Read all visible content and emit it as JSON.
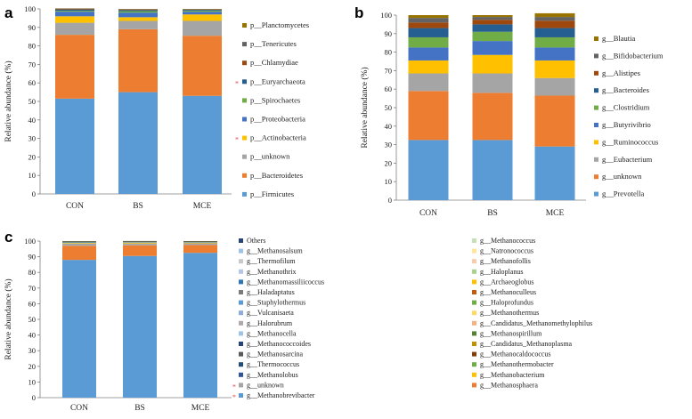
{
  "chart_data": [
    {
      "panel": "a",
      "type": "stacked-bar",
      "ylabel": "Relative abundance (%)",
      "ylim": [
        0,
        100
      ],
      "yticks": [
        "0",
        "10",
        "20",
        "30",
        "40",
        "50",
        "60",
        "70",
        "80",
        "90",
        "100"
      ],
      "categories": [
        "CON",
        "BS",
        "MCE"
      ],
      "series": [
        {
          "name": "p__Firmicutes",
          "color": "#5b9bd5",
          "values": [
            51.5,
            55,
            53
          ]
        },
        {
          "name": "p__Bacteroidetes",
          "color": "#ed7d31",
          "values": [
            34.5,
            34,
            32.5
          ]
        },
        {
          "name": "p__unknown",
          "color": "#a5a5a5",
          "values": [
            6.5,
            4.5,
            8
          ]
        },
        {
          "name": "p__Actinobacteria",
          "color": "#ffc000",
          "values": [
            3.5,
            2,
            3.5
          ]
        },
        {
          "name": "p__Proteobacteria",
          "color": "#4472c4",
          "values": [
            2.5,
            2.5,
            1.5
          ]
        },
        {
          "name": "p__Spirochaetes",
          "color": "#70ad47",
          "values": [
            0.5,
            0.8,
            0.6
          ]
        },
        {
          "name": "p__Euryarchaeota",
          "color": "#255e91",
          "values": [
            0.7,
            0.6,
            0.5
          ]
        },
        {
          "name": "p__Chlamydiae",
          "color": "#9e480e",
          "values": [
            0.3,
            0.3,
            0.2
          ]
        },
        {
          "name": "p__Tenericutes",
          "color": "#636363",
          "values": [
            0.2,
            0.2,
            0.1
          ]
        },
        {
          "name": "p__Planctomycetes",
          "color": "#997300",
          "values": [
            0.1,
            0.1,
            0.1
          ]
        }
      ],
      "starred": [
        "p__Euryarchaeota",
        "p__Actinobacteria"
      ]
    },
    {
      "panel": "b",
      "type": "stacked-bar",
      "ylabel": "Relative abundance (%)",
      "ylim": [
        0,
        100
      ],
      "yticks": [
        "0",
        "10",
        "20",
        "30",
        "40",
        "50",
        "60",
        "70",
        "80",
        "90",
        "100"
      ],
      "categories": [
        "CON",
        "BS",
        "MCE"
      ],
      "series": [
        {
          "name": "g__Prevotella",
          "color": "#5b9bd5",
          "values": [
            32.5,
            32.5,
            29
          ]
        },
        {
          "name": "g__unknown",
          "color": "#ed7d31",
          "values": [
            26.5,
            25.5,
            27.5
          ]
        },
        {
          "name": "g__Eubacterium",
          "color": "#a5a5a5",
          "values": [
            9.5,
            10.5,
            9.5
          ]
        },
        {
          "name": "g__Ruminococcus",
          "color": "#ffc000",
          "values": [
            7,
            10,
            9.5
          ]
        },
        {
          "name": "g__Butyrivibrio",
          "color": "#4472c4",
          "values": [
            7,
            7.5,
            7
          ]
        },
        {
          "name": "g__Clostridium",
          "color": "#70ad47",
          "values": [
            5.5,
            5,
            5.5
          ]
        },
        {
          "name": "g__Bacteroides",
          "color": "#255e91",
          "values": [
            5,
            4,
            5
          ]
        },
        {
          "name": "g__Alistipes",
          "color": "#9e480e",
          "values": [
            3,
            2.5,
            4
          ]
        },
        {
          "name": "g__Bifidobacterium",
          "color": "#636363",
          "values": [
            2.5,
            1.5,
            2
          ]
        },
        {
          "name": "g__Blautia",
          "color": "#997300",
          "values": [
            1.5,
            1,
            2
          ]
        }
      ],
      "starred": []
    },
    {
      "panel": "c",
      "type": "stacked-bar",
      "ylabel": "Relative abundance (%)",
      "ylim": [
        0,
        100
      ],
      "yticks": [
        "0",
        "10",
        "20",
        "30",
        "40",
        "50",
        "60",
        "70",
        "80",
        "90",
        "100"
      ],
      "categories": [
        "CON",
        "BS",
        "MCE"
      ],
      "series": [
        {
          "name": "g__Methanobrevibacter",
          "color": "#5b9bd5",
          "values": [
            88,
            90.5,
            92.5
          ]
        },
        {
          "name": "g__unknown",
          "color": "#ed7d31",
          "values": [
            9,
            6.8,
            5
          ]
        },
        {
          "name": "g__Methanosphaera",
          "color": "#a5a5a5",
          "values": [
            1.4,
            1.2,
            1.1
          ]
        },
        {
          "name": "g__Methanobacterium",
          "color": "#ffc000",
          "values": [
            0.4,
            0.5,
            0.4
          ]
        },
        {
          "name": "g__Methanothermobacter",
          "color": "#4472c4",
          "values": [
            0.3,
            0.3,
            0.3
          ]
        },
        {
          "name": "g__Methanocaldococcus",
          "color": "#70ad47",
          "values": [
            0.25,
            0.2,
            0.2
          ]
        },
        {
          "name": "g__Candidatus_Methanoplasma",
          "color": "#255e91",
          "values": [
            0.15,
            0.15,
            0.1
          ]
        },
        {
          "name": "g__Methanospirillum",
          "color": "#9e480e",
          "values": [
            0.1,
            0.1,
            0.1
          ]
        },
        {
          "name": "g__Candidatus_Methanomethylophilus",
          "color": "#636363",
          "values": [
            0.1,
            0.1,
            0.1
          ]
        },
        {
          "name": "g__Methanothermus",
          "color": "#997300",
          "values": [
            0.1,
            0.1,
            0.05
          ]
        },
        {
          "name": "g__Haloprofundus",
          "color": "#264478",
          "values": [
            0.05,
            0.05,
            0.05
          ]
        },
        {
          "name": "g__Methanoculleus",
          "color": "#43682b",
          "values": [
            0.05,
            0.05,
            0.05
          ]
        }
      ],
      "legend_col1": [
        {
          "name": "Others",
          "color": "#264478"
        },
        {
          "name": "g__Methanosalsum",
          "color": "#9dc3e6"
        },
        {
          "name": "g__Thermofilum",
          "color": "#c9c9c9"
        },
        {
          "name": "g__Methanothrix",
          "color": "#b4c7e7"
        },
        {
          "name": "g__Methanomassiliicoccus",
          "color": "#2e75b6"
        },
        {
          "name": "g__Haladaptatus",
          "color": "#7b7b7b"
        },
        {
          "name": "g__Staphylothermus",
          "color": "#5b9bd5"
        },
        {
          "name": "g__Vulcanisaeta",
          "color": "#8faadc"
        },
        {
          "name": "g__Halorubrum",
          "color": "#aeaaaa"
        },
        {
          "name": "g__Methanocella",
          "color": "#9dc3e6"
        },
        {
          "name": "g__Methanococcoides",
          "color": "#264478"
        },
        {
          "name": "g__Methanosarcina",
          "color": "#595959"
        },
        {
          "name": "g__Thermococcus",
          "color": "#1f4e79"
        },
        {
          "name": "g__Methanolobus",
          "color": "#2f5597"
        },
        {
          "name": "g__unknown",
          "color": "#a5a5a5"
        },
        {
          "name": "g__Methanobrevibacter",
          "color": "#5b9bd5"
        }
      ],
      "legend_col2": [
        {
          "name": "g__Methanococcus",
          "color": "#c5e0b4"
        },
        {
          "name": "g__Natronococcus",
          "color": "#ffe699"
        },
        {
          "name": "g__Methanofollis",
          "color": "#f8cbad"
        },
        {
          "name": "g__Haloplanus",
          "color": "#a9d18e"
        },
        {
          "name": "g__Archaeoglobus",
          "color": "#ffc000"
        },
        {
          "name": "g__Methanoculleus",
          "color": "#c55a11"
        },
        {
          "name": "g__Haloprofundus",
          "color": "#70ad47"
        },
        {
          "name": "g__Methanothermus",
          "color": "#ffd966"
        },
        {
          "name": "g__Candidatus_Methanomethylophilus",
          "color": "#f4b183"
        },
        {
          "name": "g__Methanospirillum",
          "color": "#548235"
        },
        {
          "name": "g__Candidatus_Methanoplasma",
          "color": "#bf9000"
        },
        {
          "name": "g__Methanocaldococcus",
          "color": "#843c0c"
        },
        {
          "name": "g__Methanothermobacter",
          "color": "#70ad47"
        },
        {
          "name": "g__Methanobacterium",
          "color": "#ffc000"
        },
        {
          "name": "g__Methanosphaera",
          "color": "#ed7d31"
        }
      ],
      "starred": [
        "g__unknown",
        "g__Methanobrevibacter"
      ]
    }
  ],
  "star_symbol": "*"
}
